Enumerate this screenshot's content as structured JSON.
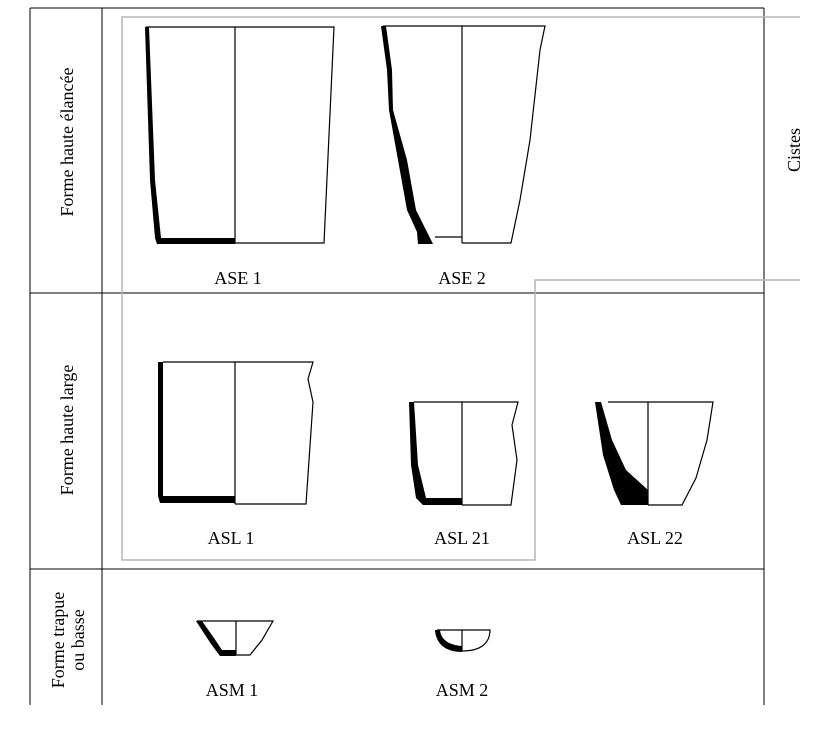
{
  "figure": {
    "rows": [
      {
        "label": "Forme haute élancée",
        "lines": [
          "Forme haute élancée"
        ]
      },
      {
        "label": "Forme haute large",
        "lines": [
          "Forme haute large"
        ]
      },
      {
        "label": "Forme trapue ou basse",
        "lines": [
          "Forme trapue",
          "ou basse"
        ]
      }
    ],
    "group_label": "Cistes",
    "vessels": [
      {
        "code": "ASE 1",
        "row": 1
      },
      {
        "code": "ASE 2",
        "row": 1
      },
      {
        "code": "ASL 1",
        "row": 2
      },
      {
        "code": "ASL  21",
        "row": 2
      },
      {
        "code": "ASL  22",
        "row": 2
      },
      {
        "code": "ASM 1",
        "row": 3
      },
      {
        "code": "ASM 2",
        "row": 3
      }
    ]
  },
  "colors": {
    "line": "#000000",
    "group_box": "#b5b5b5",
    "background": "#ffffff"
  }
}
